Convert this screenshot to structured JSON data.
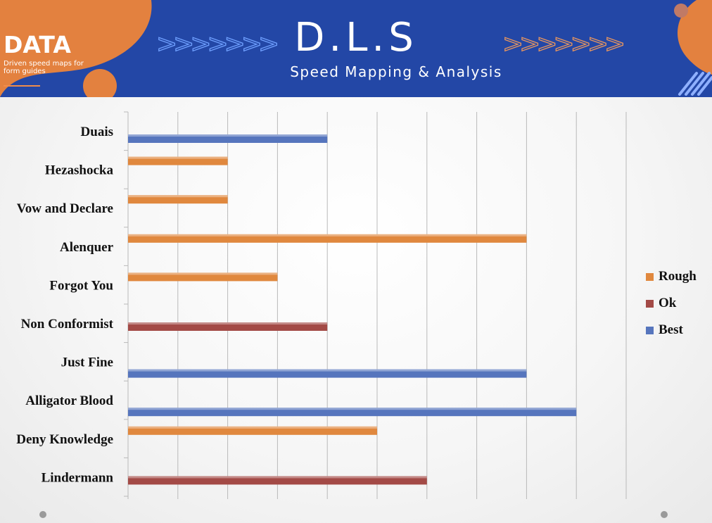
{
  "header": {
    "brand": "DATA",
    "tagline": "Driven speed maps for form guides",
    "title": "D.L.S",
    "subtitle": "Speed Mapping & Analysis",
    "chevrons": ">>>>>>>"
  },
  "chart_data": {
    "type": "bar",
    "orientation": "horizontal",
    "categories": [
      "Duais",
      "Hezashocka",
      "Vow and Declare",
      "Alenquer",
      "Forgot You",
      "Non Conformist",
      "Just Fine",
      "Alligator Blood",
      "Deny Knowledge",
      "Lindermann"
    ],
    "bars": [
      {
        "category": "Duais",
        "series": "Best",
        "value": 4
      },
      {
        "category": "Hezashocka",
        "series": "Rough",
        "value": 2
      },
      {
        "category": "Vow and Declare",
        "series": "Rough",
        "value": 2
      },
      {
        "category": "Alenquer",
        "series": "Rough",
        "value": 8
      },
      {
        "category": "Forgot You",
        "series": "Rough",
        "value": 3
      },
      {
        "category": "Non Conformist",
        "series": "Ok",
        "value": 4
      },
      {
        "category": "Just Fine",
        "series": "Best",
        "value": 8
      },
      {
        "category": "Alligator Blood",
        "series": "Best",
        "value": 9
      },
      {
        "category": "Deny Knowledge",
        "series": "Rough",
        "value": 5
      },
      {
        "category": "Lindermann",
        "series": "Ok",
        "value": 6
      }
    ],
    "series": [
      {
        "name": "Rough",
        "color": "#e0883e"
      },
      {
        "name": "Ok",
        "color": "#a34a46"
      },
      {
        "name": "Best",
        "color": "#5675bd"
      }
    ],
    "xlim": [
      0,
      10
    ],
    "grid": true,
    "legend_position": "right"
  },
  "colors": {
    "banner": "#2347a6",
    "accent_orange": "#e3813f",
    "gridline": "#b9b9b9"
  }
}
